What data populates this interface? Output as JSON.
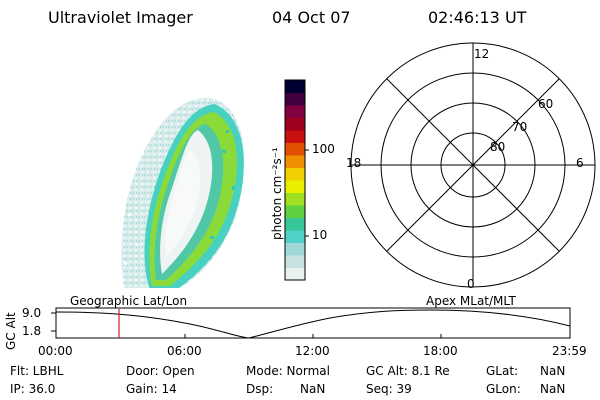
{
  "header": {
    "instrument": "Ultraviolet Imager",
    "date": "04 Oct 07",
    "time": "02:46:13 UT"
  },
  "colorbar": {
    "unit_label": "photon cm⁻²s⁻¹",
    "tick_100": "100",
    "tick_10": "10",
    "colors": [
      "#e8f0f0",
      "#c8e0e0",
      "#a0d8d8",
      "#50d0c8",
      "#38c898",
      "#60d040",
      "#a0e020",
      "#e8f000",
      "#f0d000",
      "#f09000",
      "#e05000",
      "#c81010",
      "#a00020",
      "#800040",
      "#400040",
      "#000030"
    ]
  },
  "polar_plot": {
    "mlt_labels": [
      "12",
      "18",
      "6",
      "0"
    ],
    "mlat_labels": [
      "60",
      "70",
      "80"
    ],
    "ring_radii_deg": [
      30,
      20,
      10,
      0
    ]
  },
  "timeline": {
    "y_axis_label": "GC Alt",
    "y_ticks": [
      "9.0",
      "1.8"
    ],
    "left_caption": "Geographic Lat/Lon",
    "right_caption": "Apex MLat/MLT",
    "x_ticks": [
      "00:00",
      "06:00",
      "12:00",
      "18:00",
      "23:59"
    ],
    "marker_time": "02:46"
  },
  "status": {
    "flt": "Flt: LBHL",
    "ip": "IP: 36.0",
    "door": "Door: Open",
    "gain": "Gain: 14",
    "mode": "Mode: Normal",
    "dsp": "Dsp:",
    "dsp_val": "NaN",
    "gcalt": "GC Alt: 8.1 Re",
    "seq": "Seq: 39",
    "glat": "GLat:",
    "glat_val": "NaN",
    "glon": "GLon:",
    "glon_val": "NaN"
  }
}
